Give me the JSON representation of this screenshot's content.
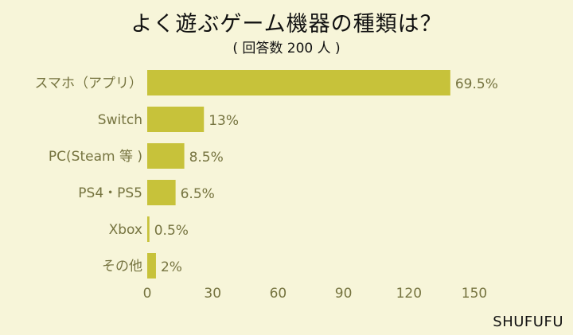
{
  "title": "よく遊ぶゲーム機器の種類は？",
  "subtitle": "( 回答数 200 人 )",
  "brand": "SHUFUFU",
  "colors": {
    "bar": "#c7c23a",
    "text": "#767440",
    "background": "#f7f5d9"
  },
  "chart_data": {
    "type": "bar",
    "orientation": "horizontal",
    "title": "よく遊ぶゲーム機器の種類は？",
    "subtitle": "( 回答数 200 人 )",
    "categories": [
      "スマホ（アプリ）",
      "Switch",
      "PC(Steam 等 )",
      "PS4・PS5",
      "Xbox",
      "その他"
    ],
    "values": [
      139,
      26,
      17,
      13,
      1,
      4
    ],
    "value_labels": [
      "69.5%",
      "13%",
      "8.5%",
      "6.5%",
      "0.5%",
      "2%"
    ],
    "x_ticks": [
      0,
      30,
      60,
      90,
      120,
      150
    ],
    "xlim": [
      0,
      150
    ],
    "grid": false
  }
}
